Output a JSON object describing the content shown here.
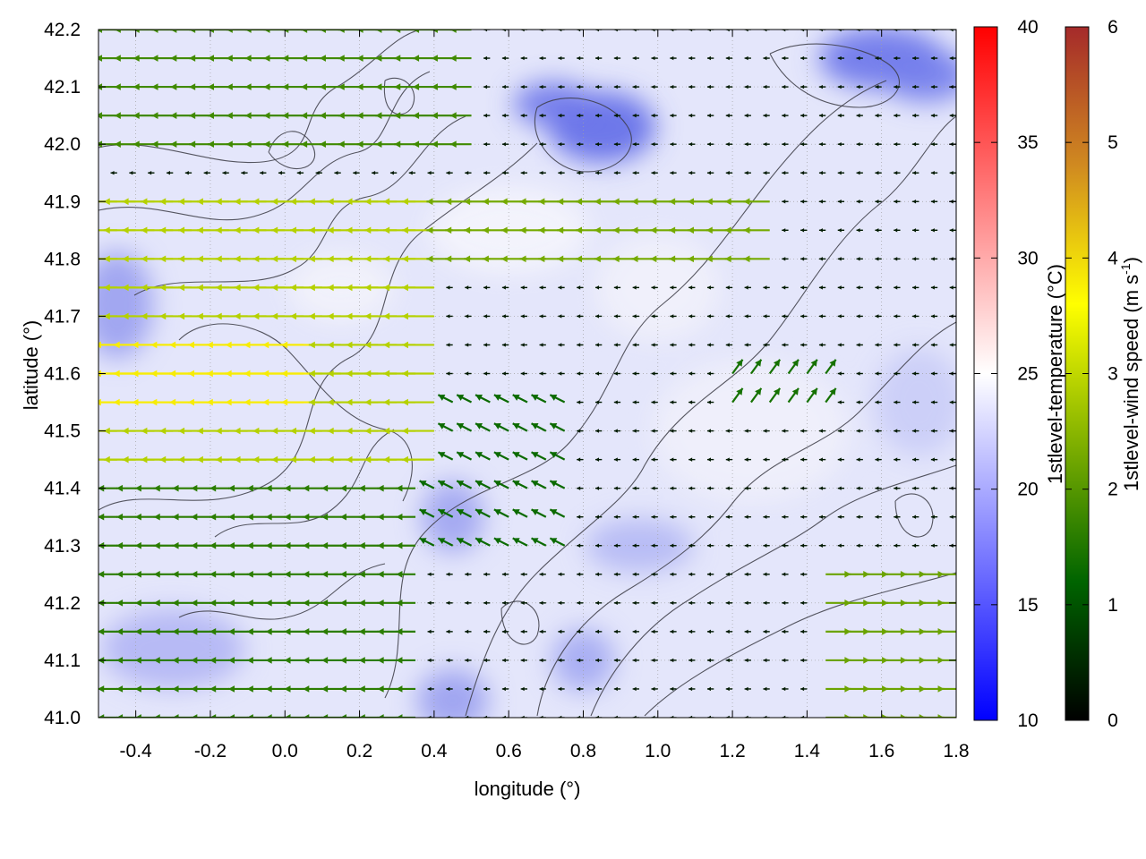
{
  "chart_data": {
    "type": "heatmap",
    "subtype": "vector-field-with-contours",
    "title": "",
    "xlabel": "longitude (°)",
    "ylabel": "latitude (°)",
    "xlim": [
      -0.5,
      1.8
    ],
    "ylim": [
      41.0,
      42.2
    ],
    "x_ticks": [
      "-0.4",
      "-0.2",
      "0.0",
      "0.2",
      "0.4",
      "0.6",
      "0.8",
      "1.0",
      "1.2",
      "1.4",
      "1.6",
      "1.8"
    ],
    "y_ticks": [
      "41.0",
      "41.1",
      "41.2",
      "41.3",
      "41.4",
      "41.5",
      "41.6",
      "41.7",
      "41.8",
      "41.9",
      "42.0",
      "42.1",
      "42.2"
    ],
    "grid": true,
    "colorbars": [
      {
        "name": "temperature",
        "label": "1stlevel-temperature (°C)",
        "range": [
          10,
          40
        ],
        "ticks": [
          "10",
          "15",
          "20",
          "25",
          "30",
          "35",
          "40"
        ],
        "colors": [
          "#0000ff",
          "#ffffff",
          "#ff0000"
        ]
      },
      {
        "name": "wind-speed",
        "label_main": "1stlevel-wind speed (m s",
        "label_sup": "-1",
        "label_end": ")",
        "range": [
          0,
          6
        ],
        "ticks": [
          "0",
          "1",
          "2",
          "3",
          "4",
          "5",
          "6"
        ],
        "colors": [
          "#000000",
          "#006400",
          "#80b000",
          "#ffff00",
          "#d08a20",
          "#a52a2a"
        ]
      }
    ],
    "wind_field_summary": [
      {
        "region": "west, lat 41.45-41.9",
        "direction": "westward",
        "speed_ms": 3.0
      },
      {
        "region": "west, lat 41.5-41.65",
        "direction": "westward",
        "speed_ms": 4.0
      },
      {
        "region": "center 0.5-1.2 lon, lat 41.8-41.9",
        "direction": "westward",
        "speed_ms": 2.3
      },
      {
        "region": "southeast 1.5-1.8 lon, lat 41.1-41.25",
        "direction": "eastward",
        "speed_ms": 2.2
      },
      {
        "region": "central basin",
        "direction": "variable",
        "speed_ms": 0.3
      }
    ]
  }
}
